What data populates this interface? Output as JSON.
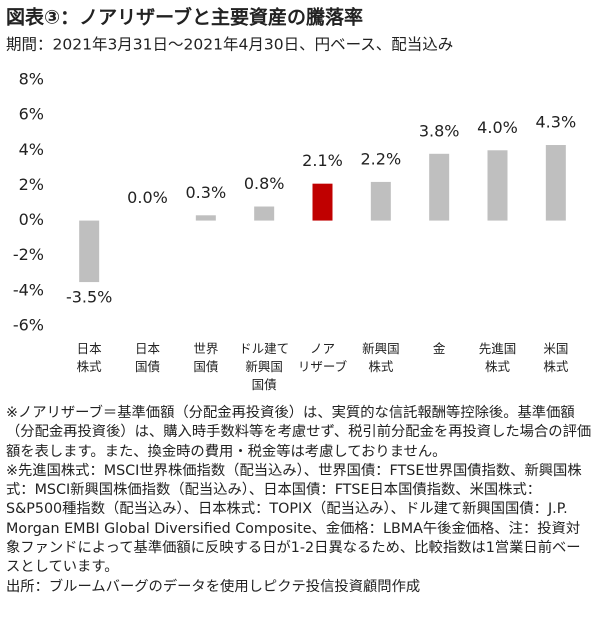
{
  "chart_data": {
    "type": "bar",
    "title": "図表③：ノアリザーブと主要資産の騰落率",
    "subtitle": "期間：2021年3月31日～2021年4月30日、円ベース、配当込み",
    "categories": [
      "日本\n株式",
      "日本\n国債",
      "世界\n国債",
      "ドル建て\n新興国\n国債",
      "ノア\nリザーブ",
      "新興国\n株式",
      "金",
      "先進国\n株式",
      "米国\n株式"
    ],
    "values": [
      -3.5,
      0.0,
      0.3,
      0.8,
      2.1,
      2.2,
      3.8,
      4.0,
      4.3
    ],
    "value_labels": [
      "-3.5%",
      "0.0%",
      "0.3%",
      "0.8%",
      "2.1%",
      "2.2%",
      "3.8%",
      "4.0%",
      "4.3%"
    ],
    "colors": [
      "#bfbfbf",
      "#bfbfbf",
      "#bfbfbf",
      "#bfbfbf",
      "#c00000",
      "#bfbfbf",
      "#bfbfbf",
      "#bfbfbf",
      "#bfbfbf"
    ],
    "ylim": [
      -6,
      8
    ],
    "yticks": [
      {
        "value": 8,
        "label": "8%"
      },
      {
        "value": 6,
        "label": "6%"
      },
      {
        "value": 4,
        "label": "4%"
      },
      {
        "value": 2,
        "label": "2%"
      },
      {
        "value": 0,
        "label": "0%"
      },
      {
        "value": -2,
        "label": "-2%"
      },
      {
        "value": -4,
        "label": "-4%"
      },
      {
        "value": -6,
        "label": "-6%"
      }
    ],
    "grid": false,
    "notes": [
      "※ノアリザーブ＝基準価額（分配金再投資後）は、実質的な信託報酬等控除後。基準価額（分配金再投資後）は、購入時手数料等を考慮せず、税引前分配金を再投資した場合の評価額を表します。また、換金時の費用・税金等は考慮しておりません。",
      "※先進国株式：MSCI世界株価指数（配当込み）、世界国債：FTSE世界国債指数、新興国株式：MSCI新興国株価指数（配当込み）、日本国債：FTSE日本国債指数、米国株式：S&P500種指数（配当込み）、日本株式：TOPIX（配当込み）、ドル建て新興国国債：J.P. Morgan EMBI Global Diversified Composite、金価格：LBMA午後金価格、注：投資対象ファンドによって基準価額に反映する日が1-2日異なるため、比較指数は1営業日前ベースとしています。",
      "出所：ブルームバーグのデータを使用しピクテ投信投資顧問作成"
    ]
  }
}
